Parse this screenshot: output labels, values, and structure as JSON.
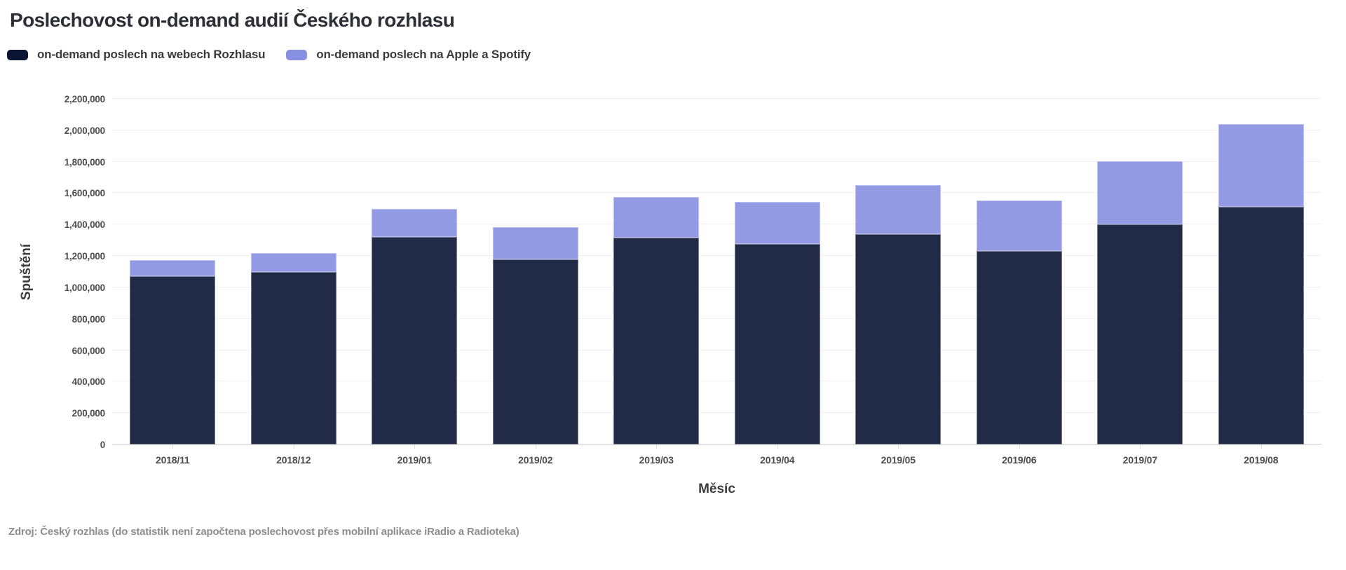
{
  "header": {
    "title": "Poslechovost on-demand audií Českého rozhlasu"
  },
  "legend": {
    "items": [
      {
        "label": "on-demand poslech na webech Rozhlasu",
        "color": "#0a1433"
      },
      {
        "label": "on-demand poslech na Apple a Spotify",
        "color": "#8790e2"
      }
    ]
  },
  "chart_data": {
    "type": "bar",
    "stacked": true,
    "title": "Poslechovost on-demand audií Českého rozhlasu",
    "xlabel": "Měsíc",
    "ylabel": "Spuštění",
    "categories": [
      "2018/11",
      "2018/12",
      "2019/01",
      "2019/02",
      "2019/03",
      "2019/04",
      "2019/05",
      "2019/06",
      "2019/07",
      "2019/08"
    ],
    "series": [
      {
        "name": "on-demand poslech na webech Rozhlasu",
        "color": "#0a1433",
        "values": [
          1070000,
          1100000,
          1320000,
          1180000,
          1315000,
          1275000,
          1340000,
          1230000,
          1400000,
          1515000
        ]
      },
      {
        "name": "on-demand poslech na Apple a Spotify",
        "color": "#8790e2",
        "values": [
          105000,
          120000,
          180000,
          205000,
          260000,
          270000,
          310000,
          325000,
          405000,
          525000
        ]
      }
    ],
    "stack_totals": [
      1175000,
      1220000,
      1500000,
      1385000,
      1575000,
      1545000,
      1650000,
      1555000,
      1805000,
      2040000
    ],
    "ylim": [
      0,
      2200000
    ],
    "ytick_step": 200000,
    "grid": "horizontal",
    "legend_position": "top",
    "colors": {
      "grid": "#f1f1f1",
      "axis": "#c9c9c9",
      "tick_text": "#4d4d4d"
    }
  },
  "footer": {
    "source": "Zdroj: Český rozhlas (do statistik není započtena poslechovost přes mobilní aplikace iRadio a Radioteka)"
  }
}
